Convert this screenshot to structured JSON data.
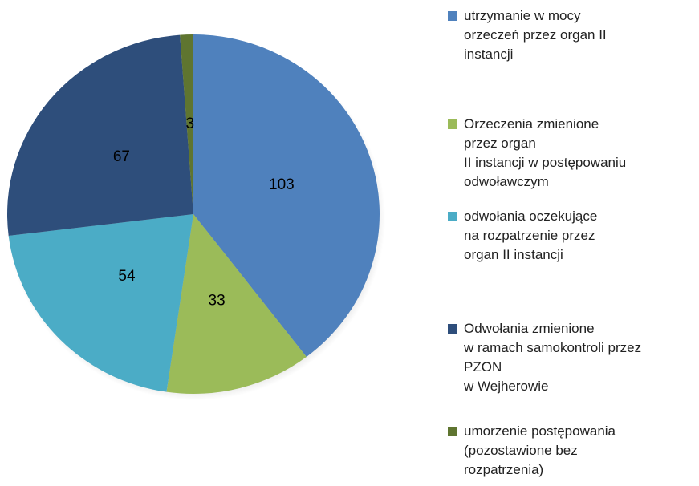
{
  "chart_data": {
    "type": "pie",
    "series": [
      {
        "name": "utrzymanie w mocy\norzeczeń przez organ II\ninstancji",
        "color": "#4f81bd",
        "values": [
          103
        ]
      },
      {
        "name": "Orzeczenia zmienione\nprzez organ\nII instancji w postępowaniu\nodwoławczym",
        "color": "#9bbb59",
        "values": [
          33
        ]
      },
      {
        "name": "odwołania oczekujące\nna rozpatrzenie przez\norgan II instancji",
        "color": "#4bacc6",
        "values": [
          54
        ]
      },
      {
        "name": "Odwołania zmienione\nw ramach samokontroli przez\nPZON\nw Wejherowie",
        "color": "#2e4e7b",
        "values": [
          67
        ]
      },
      {
        "name": "umorzenie postępowania\n(pozostawione bez\nrozpatrzenia)",
        "color": "#5f7530",
        "values": [
          3
        ]
      }
    ]
  }
}
